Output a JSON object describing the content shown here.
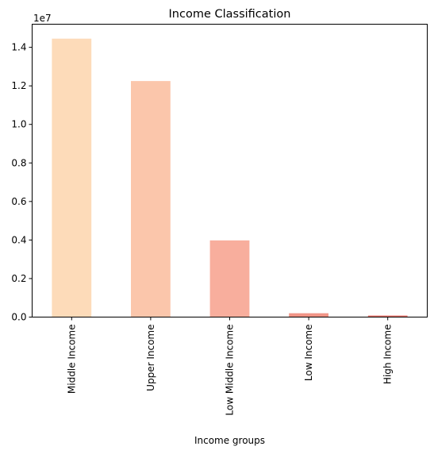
{
  "chart_data": {
    "type": "bar",
    "title": "Income Classification",
    "xlabel": "Income groups",
    "ylabel": "",
    "y_offset_label": "1e7",
    "y_scale": 10000000,
    "ylim": [
      0,
      15200000
    ],
    "yticks": [
      0,
      2000000,
      4000000,
      6000000,
      8000000,
      10000000,
      12000000,
      14000000
    ],
    "ytick_labels": [
      "0.0",
      "0.2",
      "0.4",
      "0.6",
      "0.8",
      "1.0",
      "1.2",
      "1.4"
    ],
    "categories": [
      "Middle Income",
      "Upper Income",
      "Low Middle Income",
      "Low Income",
      "High Income"
    ],
    "values": [
      14450000,
      12250000,
      3980000,
      200000,
      80000
    ],
    "colors": [
      "#fddbb9",
      "#fbc6ab",
      "#f8ae9d",
      "#f19587",
      "#e8746c"
    ],
    "grid": false,
    "legend": "none"
  }
}
